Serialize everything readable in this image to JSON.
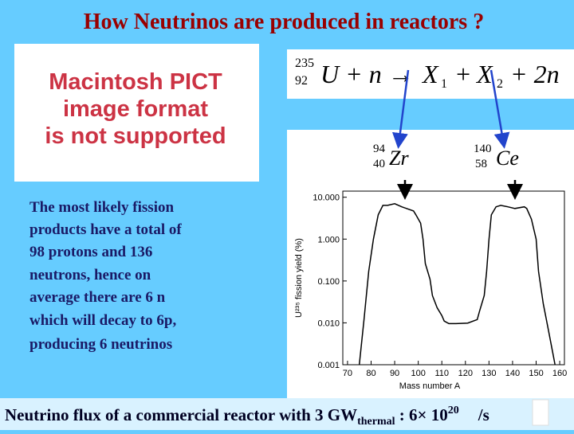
{
  "title": "How Neutrinos are produced in reactors ?",
  "placeholder": {
    "lines": [
      "Macintosh PICT",
      "image format",
      "is not supported"
    ]
  },
  "equation": {
    "mass": "235",
    "charge": "92",
    "lhs": "U + n →",
    "x": "X",
    "sub1": "1",
    "plus": "+",
    "sub2": "2",
    "rhs": "+ 2n"
  },
  "nuclei": [
    {
      "mass": "94",
      "charge": "40",
      "symbol": "Zr"
    },
    {
      "mass": "140",
      "charge": "58",
      "symbol": "Ce"
    }
  ],
  "body": [
    "The most likely fission",
    "products have a total of",
    "98 protons and 136",
    "neutrons, hence on",
    "average there are 6 n",
    "which will decay to 6p,",
    "producing 6 neutrinos"
  ],
  "footer": {
    "text": "Neutrino flux of a commercial reactor with 3 GW",
    "sub": "thermal",
    "mid": " :  6× 10",
    "sup": "20",
    "end": "/s"
  },
  "figure": {
    "type": "line",
    "y_label": "U²³⁵ fission yield (%)",
    "x_label": "Mass number A",
    "log_y": true,
    "color": "#000000",
    "x": [
      75,
      77,
      79,
      81,
      83,
      85,
      87,
      90,
      93,
      95,
      98,
      99,
      101,
      102,
      103,
      105,
      106,
      108,
      110,
      111,
      113,
      116,
      121,
      125,
      126,
      128,
      129,
      130,
      131,
      133,
      135,
      138,
      141,
      145,
      146,
      148,
      150,
      151,
      153,
      155,
      157,
      158
    ],
    "values": [
      0.001,
      0.012,
      0.17,
      1.0,
      3.8,
      6.4,
      6.4,
      7.0,
      5.9,
      5.4,
      4.7,
      3.8,
      2.4,
      1.0,
      0.26,
      0.11,
      0.045,
      0.023,
      0.015,
      0.011,
      0.0096,
      0.0096,
      0.0099,
      0.012,
      0.019,
      0.045,
      0.17,
      1.0,
      3.8,
      5.9,
      6.4,
      5.9,
      5.4,
      5.9,
      5.4,
      3.0,
      1.0,
      0.17,
      0.029,
      0.0077,
      0.002,
      0.001
    ],
    "xlim": [
      68,
      162
    ],
    "ylim": [
      0.001,
      14
    ],
    "xticks": [
      70,
      80,
      90,
      100,
      110,
      120,
      130,
      140,
      150,
      160
    ],
    "yticks": [
      {
        "value": 10,
        "label": "10.000"
      },
      {
        "value": 1,
        "label": "1.000"
      },
      {
        "value": 0.1,
        "label": "0.100"
      },
      {
        "value": 0.01,
        "label": "0.010"
      },
      {
        "value": 0.001,
        "label": "0.001"
      }
    ]
  }
}
